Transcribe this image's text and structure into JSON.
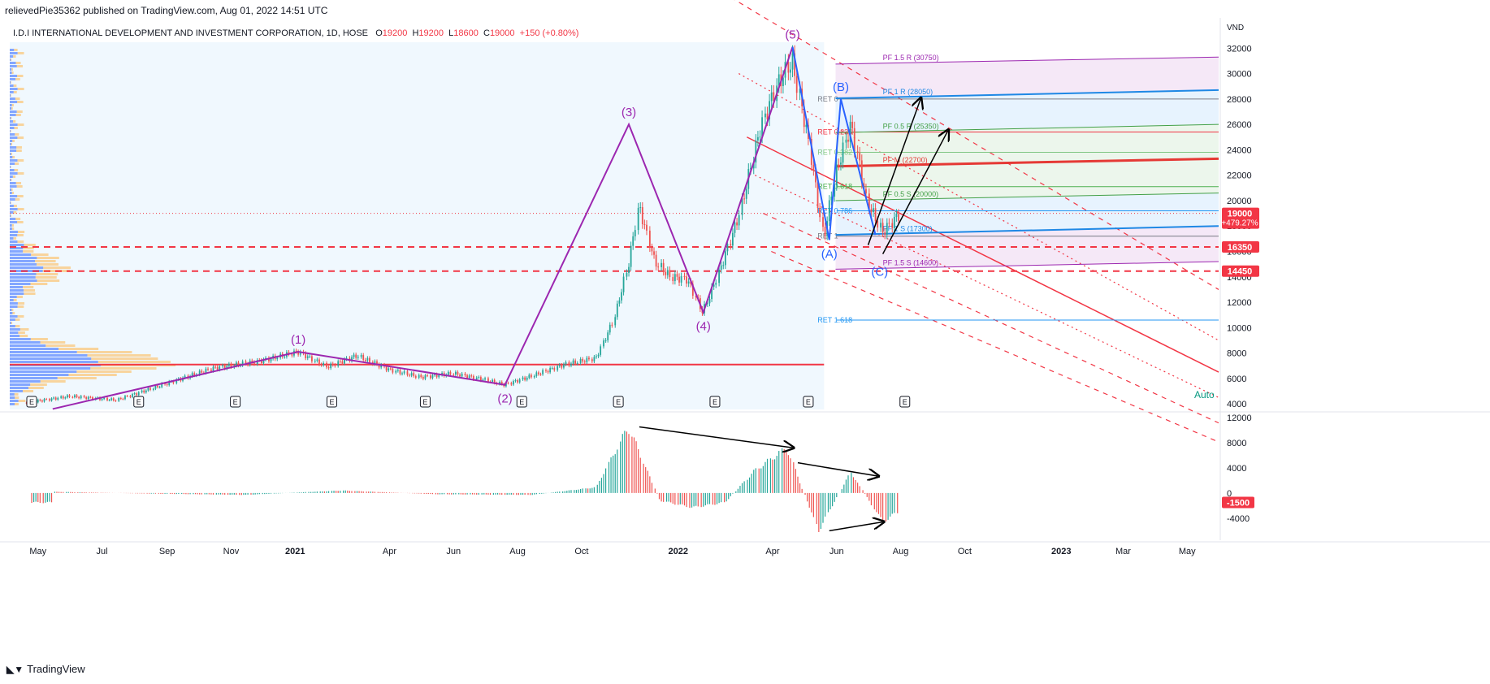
{
  "header": {
    "publisher_line": "relievedPie35362 published on TradingView.com, Aug 01, 2022 14:51 UTC"
  },
  "symbol": {
    "name": "I.D.I INTERNATIONAL DEVELOPMENT AND INVESTMENT CORPORATION, 1D, HOSE",
    "o_label": "O",
    "o": "19200",
    "h_label": "H",
    "h": "19200",
    "l_label": "L",
    "l": "18600",
    "c_label": "C",
    "c": "19000",
    "change": "+150 (+0.80%)"
  },
  "footer": {
    "brand": "TradingView"
  },
  "colors": {
    "accent_red": "#f23645",
    "wave_purple": "#9c27b0",
    "abc_blue": "#2962ff",
    "up": "#26a69a",
    "down": "#ef5350"
  },
  "chart_data": [
    {
      "type": "line",
      "title": "",
      "currency_label": "VND",
      "y_ticks": [
        32000,
        30000,
        28000,
        26000,
        24000,
        22000,
        20000,
        18000,
        16000,
        14000,
        12000,
        10000,
        8000,
        6000,
        4000
      ],
      "ylim": [
        3500,
        34000
      ],
      "x_ticks": [
        "May",
        "Jul",
        "Sep",
        "Nov",
        "2021",
        "Apr",
        "Jun",
        "Aug",
        "Oct",
        "2022",
        "Apr",
        "Jun",
        "Aug",
        "Oct",
        "2023",
        "Mar",
        "May"
      ],
      "price_series": {
        "x": [
          "2020-04-20",
          "2020-06-01",
          "2020-07-15",
          "2020-09-01",
          "2020-10-15",
          "2020-12-01",
          "2021-01-04",
          "2021-02-01",
          "2021-03-01",
          "2021-04-01",
          "2021-05-01",
          "2021-06-01",
          "2021-07-01",
          "2021-07-20",
          "2021-08-15",
          "2021-09-15",
          "2021-10-15",
          "2021-11-01",
          "2021-11-15",
          "2021-11-25",
          "2021-12-10",
          "2021-12-25",
          "2022-01-10",
          "2022-01-25",
          "2022-02-10",
          "2022-03-01",
          "2022-03-20",
          "2022-04-05",
          "2022-04-20",
          "2022-05-05",
          "2022-05-20",
          "2022-05-31",
          "2022-06-15",
          "2022-06-30",
          "2022-07-15",
          "2022-08-01"
        ],
        "y": [
          4100,
          4600,
          4300,
          5600,
          6800,
          7400,
          8100,
          6900,
          7800,
          6700,
          6100,
          6400,
          5900,
          5500,
          6200,
          7100,
          7600,
          10600,
          15000,
          19600,
          15200,
          14000,
          13800,
          11200,
          14500,
          19000,
          25500,
          29000,
          31000,
          25000,
          17000,
          22000,
          26000,
          20000,
          17500,
          19000
        ]
      },
      "price_labels": [
        {
          "value": 19000,
          "text": "19000",
          "sub": "+479.27%"
        },
        {
          "value": 16350,
          "text": "16350"
        },
        {
          "value": 14450,
          "text": "14450"
        }
      ],
      "wave_labels": [
        {
          "label": "(1)",
          "x": "2021-01-04",
          "y": 8100
        },
        {
          "label": "(2)",
          "x": "2021-07-20",
          "y": 5500
        },
        {
          "label": "(3)",
          "x": "2021-11-15",
          "y": 26000
        },
        {
          "label": "(4)",
          "x": "2022-01-25",
          "y": 11200
        },
        {
          "label": "(5)",
          "x": "2022-04-20",
          "y": 32100
        },
        {
          "label": "(A)",
          "x": "2022-05-25",
          "y": 16900
        },
        {
          "label": "(B)",
          "x": "2022-06-05",
          "y": 28000
        },
        {
          "label": "(C)",
          "x": "2022-07-12",
          "y": 15500
        }
      ],
      "fib_labels": [
        {
          "text": "RET 0",
          "value": 28000
        },
        {
          "text": "RET 0.236",
          "value": 25400
        },
        {
          "text": "RET 0.382",
          "value": 23800
        },
        {
          "text": "RET 0.618",
          "value": 21100
        },
        {
          "text": "RET 0.786",
          "value": 19200
        },
        {
          "text": "RET 1",
          "value": 17200
        },
        {
          "text": "RET 1.618",
          "value": 10600
        }
      ],
      "pitchfork_labels": [
        {
          "text": "PF 1.5 R (30750)",
          "value": 30750
        },
        {
          "text": "PF 1 R (28050)",
          "value": 28050
        },
        {
          "text": "PF 0.5 R (25350)",
          "value": 25350
        },
        {
          "text": "PF M (22700)",
          "value": 22700
        },
        {
          "text": "PF 0.5 S (20000)",
          "value": 20000
        },
        {
          "text": "PF 1 S (17300)",
          "value": 17300
        },
        {
          "text": "PF 1.5 S (14600)",
          "value": 14600
        }
      ],
      "earnings_marker": "E",
      "scale_mode": "Auto"
    },
    {
      "type": "bar",
      "title": "",
      "y_ticks": [
        12000,
        8000,
        4000,
        0,
        -4000
      ],
      "ylim": [
        -7500,
        12500
      ],
      "last_value": "-1500",
      "x": [
        "2020-05",
        "2020-08",
        "2020-11",
        "2021-02",
        "2021-05",
        "2021-08",
        "2021-10",
        "2021-11",
        "2021-12",
        "2022-01",
        "2022-02",
        "2022-03",
        "2022-04",
        "2022-05",
        "2022-06",
        "2022-07",
        "2022-08"
      ],
      "values": [
        200,
        -100,
        -300,
        400,
        -200,
        -300,
        900,
        10500,
        -1200,
        -2300,
        -1500,
        3500,
        7200,
        -6000,
        3300,
        -4500,
        -1500
      ]
    }
  ]
}
